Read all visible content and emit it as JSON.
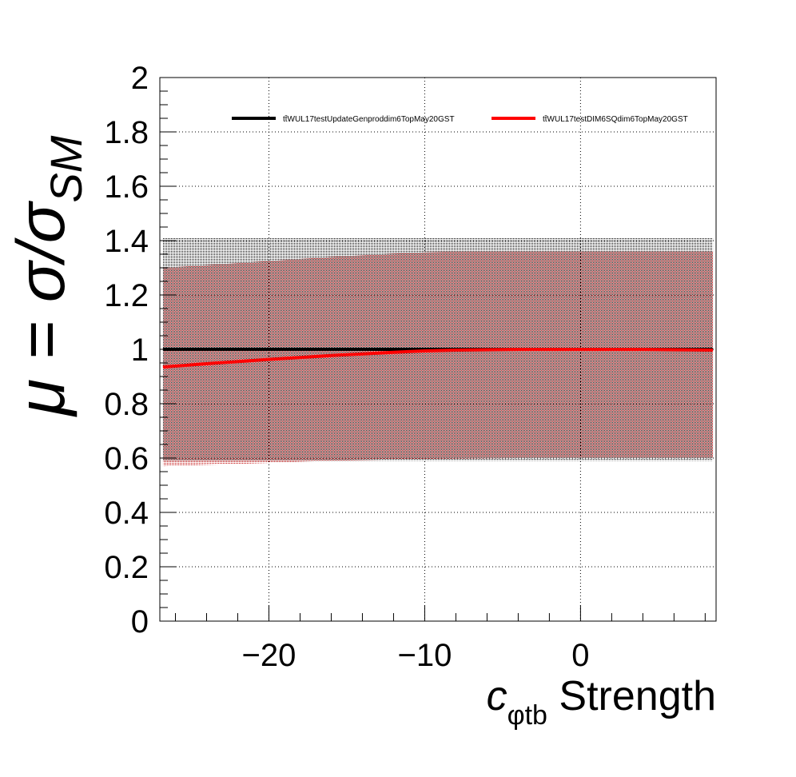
{
  "chart_data": {
    "type": "line",
    "xlabel": {
      "symbol": "c",
      "subscript": "φtb",
      "text": " Strength"
    },
    "ylabel": {
      "text": "μ = σ/σ",
      "subscript": "SM"
    },
    "xlim": [
      -27,
      8.7
    ],
    "ylim": [
      0,
      2
    ],
    "xticks": [
      -20,
      -10,
      0
    ],
    "xtick_labels": [
      "−20",
      "−10",
      "0"
    ],
    "yticks": [
      0,
      0.2,
      0.4,
      0.6,
      0.8,
      1,
      1.2,
      1.4,
      1.6,
      1.8,
      2
    ],
    "ytick_labels": [
      "0",
      "0.2",
      "0.4",
      "0.6",
      "0.8",
      "1",
      "1.2",
      "1.4",
      "1.6",
      "1.8",
      "2"
    ],
    "grid": true,
    "legend_position": "top",
    "series": [
      {
        "name": "tt̄WUL17testUpdateGenproddim6TopMay20GST",
        "color": "#000000",
        "band_color": "#000000",
        "x": [
          -26.8,
          -20,
          -15,
          -10,
          -5,
          0,
          5,
          8.5
        ],
        "y": [
          1.0,
          1.0,
          1.0,
          1.0,
          1.0,
          1.0,
          1.0,
          1.0
        ],
        "band_low": [
          0.59,
          0.59,
          0.59,
          0.59,
          0.59,
          0.59,
          0.59,
          0.59
        ],
        "band_high": [
          1.41,
          1.41,
          1.41,
          1.41,
          1.41,
          1.41,
          1.41,
          1.41
        ]
      },
      {
        "name": "tt̄WUL17testDIM6SQdim6TopMay20GST",
        "color": "#ff0000",
        "band_color": "#c00000",
        "x": [
          -26.8,
          -24,
          -20,
          -16,
          -12,
          -10,
          -8,
          -4,
          0,
          4,
          8.5
        ],
        "y": [
          0.935,
          0.947,
          0.963,
          0.977,
          0.989,
          0.994,
          0.997,
          1.0,
          1.0,
          1.0,
          0.997
        ],
        "band_low": [
          0.57,
          0.575,
          0.582,
          0.59,
          0.595,
          0.597,
          0.598,
          0.6,
          0.6,
          0.6,
          0.6
        ],
        "band_high": [
          1.3,
          1.31,
          1.325,
          1.34,
          1.352,
          1.357,
          1.36,
          1.36,
          1.36,
          1.36,
          1.36
        ]
      }
    ]
  }
}
